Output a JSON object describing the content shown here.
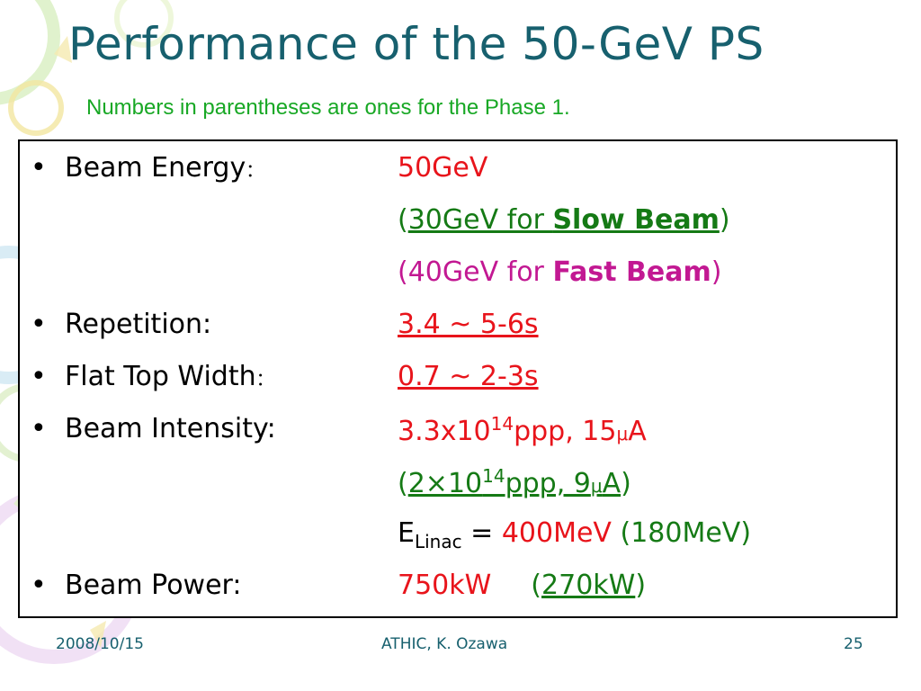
{
  "slide": {
    "title": "Performance of the 50-GeV PS",
    "subtitle": "Numbers in parentheses are ones for the Phase 1."
  },
  "rows": {
    "beam_energy": {
      "label": "Beam Energy",
      "sep": "：",
      "value": "50GeV",
      "slow_open": "(",
      "slow_value": "30GeV for ",
      "slow_emph": "Slow Beam",
      "slow_close": ")",
      "fast_open": "(40GeV for ",
      "fast_emph": "Fast Beam",
      "fast_close": ")"
    },
    "repetition": {
      "label": "Repetition:",
      "value": "3.4 ~ 5-6s"
    },
    "flat_top": {
      "label": "Flat Top Width",
      "sep": "：",
      "value": "0.7 ~ 2-3s"
    },
    "intensity": {
      "label": "Beam Intensity:",
      "v_base": "3.3x10",
      "v_exp": "14",
      "v_tail": "ppp, 15",
      "v_mu": "μ",
      "v_unit": "A",
      "p_open": "(",
      "p_base": "2×10",
      "p_exp": "14",
      "p_tail": "ppp, 9",
      "p_mu": "μ",
      "p_unit": "A",
      "p_close": ")",
      "linac_e": "E",
      "linac_sub": "Linac",
      "linac_eq": " = ",
      "linac_value": "400MeV",
      "linac_phase1": " (180MeV)"
    },
    "power": {
      "label": "Beam Power:",
      "value": "750kW",
      "p_open": "(",
      "p_value": "270kW",
      "p_close": ")"
    }
  },
  "footer": {
    "date": "2008/10/15",
    "author": "ATHIC, K. Ozawa",
    "page": "25"
  },
  "colors": {
    "title": "#17606e",
    "subtitle": "#18a825",
    "value_red": "#e8141b",
    "phase1_green": "#1a9c1a",
    "fast_magenta": "#c21892"
  }
}
